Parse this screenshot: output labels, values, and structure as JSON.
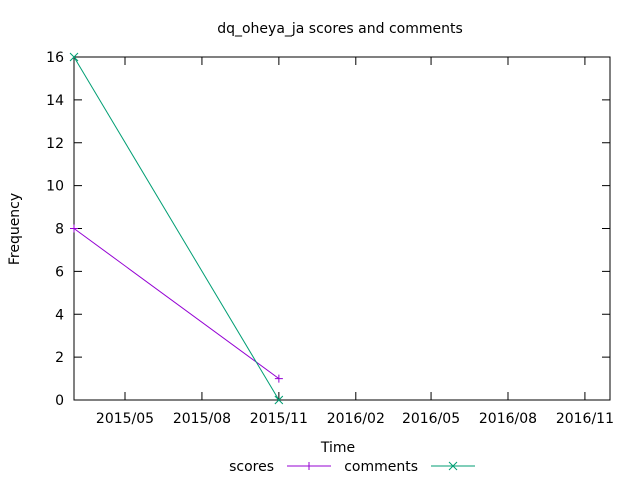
{
  "chart_data": {
    "type": "line",
    "title": "dq_oheya_ja scores and comments",
    "xlabel": "Time",
    "ylabel": "Frequency",
    "x_range": [
      "2015-03-01",
      "2016-12-01"
    ],
    "y_range": [
      0,
      16
    ],
    "y_ticks": [
      0,
      2,
      4,
      6,
      8,
      10,
      12,
      14,
      16
    ],
    "x_ticks": [
      {
        "date": "2015-05-01",
        "label": "2015/05"
      },
      {
        "date": "2015-08-01",
        "label": "2015/08"
      },
      {
        "date": "2015-11-01",
        "label": "2015/11"
      },
      {
        "date": "2016-02-01",
        "label": "2016/02"
      },
      {
        "date": "2016-05-01",
        "label": "2016/05"
      },
      {
        "date": "2016-08-01",
        "label": "2016/08"
      },
      {
        "date": "2016-11-01",
        "label": "2016/11"
      }
    ],
    "grid": false,
    "legend_position": "bottom",
    "series": [
      {
        "name": "scores",
        "color": "#9400d3",
        "marker": "plus",
        "points": [
          {
            "x": "2015-03-01",
            "y": 8
          },
          {
            "x": "2015-11-01",
            "y": 1
          }
        ]
      },
      {
        "name": "comments",
        "color": "#009e73",
        "marker": "cross",
        "points": [
          {
            "x": "2015-03-01",
            "y": 16
          },
          {
            "x": "2015-11-01",
            "y": 0
          }
        ]
      }
    ]
  }
}
